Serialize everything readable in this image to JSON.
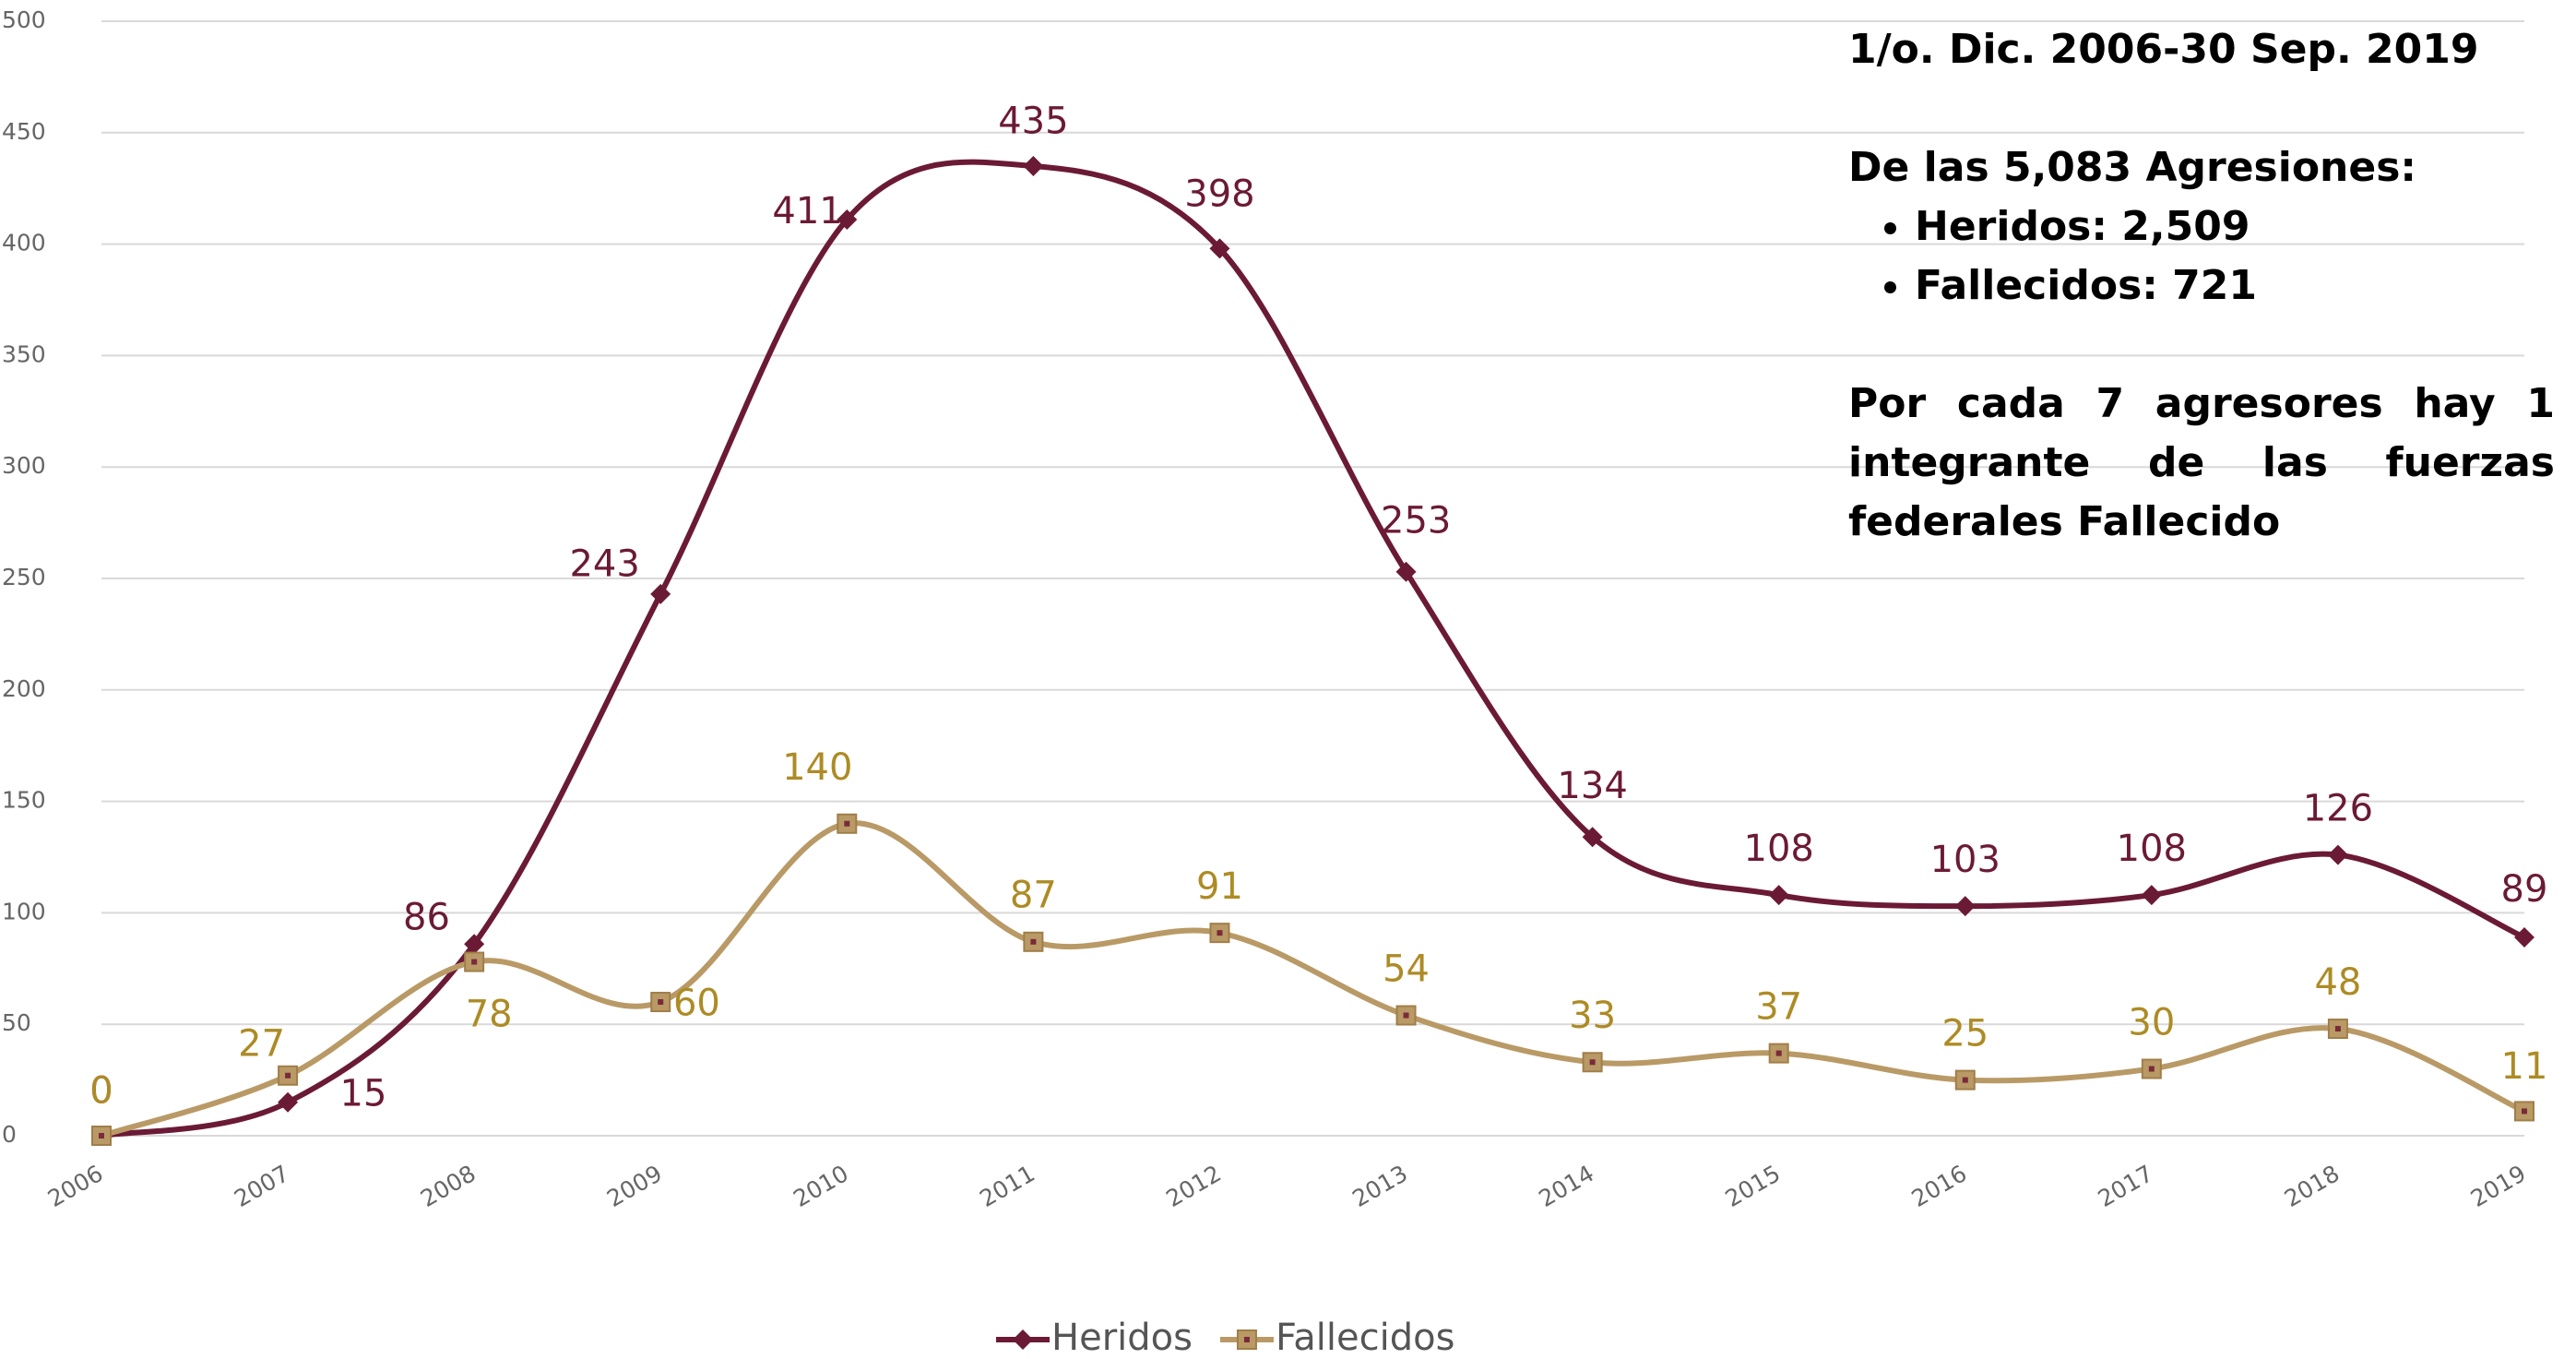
{
  "chart_data": {
    "type": "line",
    "categories": [
      "2006",
      "2007",
      "2008",
      "2009",
      "2010",
      "2011",
      "2012",
      "2013",
      "2014",
      "2015",
      "2016",
      "2017",
      "2018",
      "2019"
    ],
    "series": [
      {
        "name": "Heridos",
        "color": "#6b1a35",
        "values": [
          0,
          15,
          86,
          243,
          411,
          435,
          398,
          253,
          134,
          108,
          103,
          108,
          126,
          89
        ]
      },
      {
        "name": "Fallecidos",
        "color": "#b99a66",
        "label_color": "#ad8b25",
        "values": [
          0,
          27,
          78,
          60,
          140,
          87,
          91,
          54,
          33,
          37,
          25,
          30,
          48,
          11
        ]
      }
    ],
    "ylim": [
      0,
      500
    ],
    "yticks": [
      0,
      50,
      100,
      150,
      200,
      250,
      300,
      350,
      400,
      450,
      500
    ],
    "grid": true,
    "legend": "bottom",
    "annotations": {
      "period": "1/o. Dic. 2006-30 Sep. 2019",
      "summary": "De las 5,083 Agresiones:",
      "bullets": [
        "Heridos: 2,509",
        "Fallecidos: 721"
      ],
      "note": "Por cada 7 agresores hay 1 integrante de las fuerzas federales Fallecido"
    }
  }
}
